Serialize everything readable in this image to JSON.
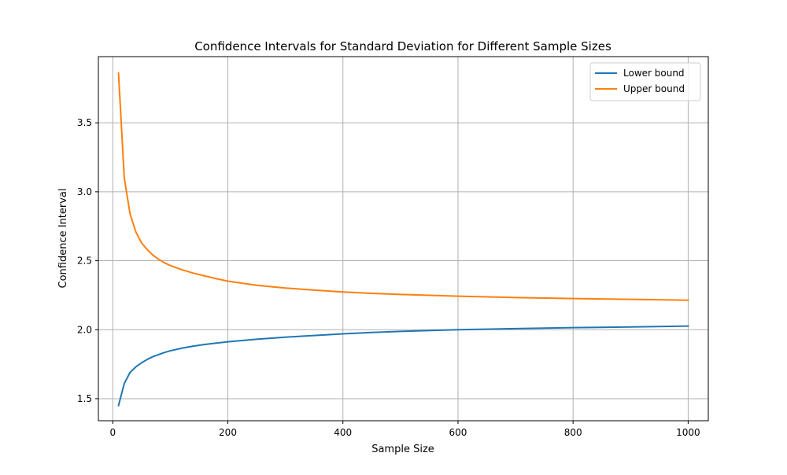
{
  "chart_data": {
    "type": "line",
    "title": "Confidence Intervals for Standard Deviation for Different Sample Sizes",
    "xlabel": "Sample Size",
    "ylabel": "Confidence Interval",
    "xlim": [
      -25,
      1035
    ],
    "ylim": [
      1.34,
      3.98
    ],
    "xticks": [
      0,
      200,
      400,
      600,
      800,
      1000
    ],
    "yticks": [
      1.5,
      2.0,
      2.5,
      3.0,
      3.5
    ],
    "xtick_labels": [
      "0",
      "200",
      "400",
      "600",
      "800",
      "1000"
    ],
    "ytick_labels": [
      "1.5",
      "2.0",
      "2.5",
      "3.0",
      "3.5"
    ],
    "grid": true,
    "legend_position": "upper right",
    "x": [
      10,
      20,
      30,
      40,
      50,
      60,
      70,
      80,
      90,
      100,
      120,
      140,
      160,
      180,
      200,
      250,
      300,
      350,
      400,
      450,
      500,
      600,
      700,
      800,
      900,
      1000
    ],
    "series": [
      {
        "name": "Lower bound",
        "color": "#1f77b4",
        "values": [
          1.45,
          1.61,
          1.69,
          1.73,
          1.76,
          1.785,
          1.805,
          1.82,
          1.835,
          1.847,
          1.866,
          1.881,
          1.893,
          1.903,
          1.912,
          1.931,
          1.946,
          1.958,
          1.97,
          1.98,
          1.988,
          2.0,
          2.008,
          2.015,
          2.02,
          2.026
        ]
      },
      {
        "name": "Upper bound",
        "color": "#ff7f0e",
        "values": [
          3.86,
          3.1,
          2.84,
          2.71,
          2.63,
          2.58,
          2.54,
          2.51,
          2.485,
          2.465,
          2.435,
          2.41,
          2.39,
          2.37,
          2.352,
          2.322,
          2.302,
          2.287,
          2.274,
          2.264,
          2.256,
          2.243,
          2.233,
          2.226,
          2.22,
          2.214
        ]
      }
    ]
  }
}
